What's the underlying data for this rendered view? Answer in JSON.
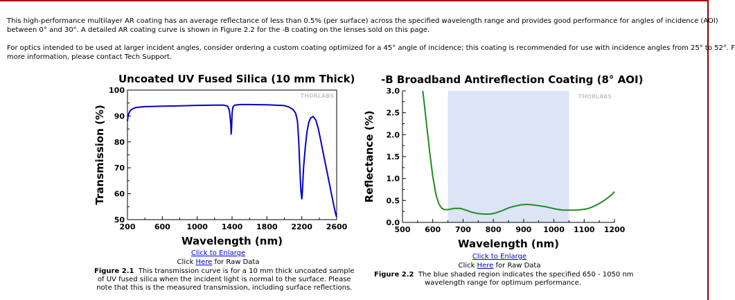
{
  "intro": {
    "p1_line1": "This high-performance multilayer AR coating has an average reflectance of less than 0.5% (per surface) across the specified wavelength range and provides good performance for angles of incidence (AOI)",
    "p1_line2": "between 0° and 30°. A detailed AR coating curve is shown in Figure 2.2 for the -B coating on the lenses sold on this page.",
    "p2_line1": "For optics intended to be used at larger incident angles, consider ordering a custom coating optimized for a 45° angle of incidence; this coating is recommended for use with incidence angles from 25° to 52°. F",
    "p2_line2": "more information, please contact Tech Support."
  },
  "watermark": "THORLABS",
  "figure1": {
    "enlarge": "Click to Enlarge",
    "raw_pre": "Click ",
    "raw_link": "Here",
    "raw_post": " for Raw Data",
    "label": "Figure 2.1",
    "caption_l1": "This transmission curve is for a 10 mm thick uncoated sample",
    "caption_l2": "of UV fused silica when the incident light is normal to the surface. Please",
    "caption_l3": "note that this is the measured transmission, including surface reflections."
  },
  "figure2": {
    "enlarge": "Click to Enlarge",
    "raw_pre": "Click ",
    "raw_link": "Here",
    "raw_post": " for Raw Data",
    "label": "Figure 2.2",
    "caption_l1": "The blue shaded region indicates the specified 650 - 1050 nm",
    "caption_l2": "wavelength range for optimum performance."
  },
  "colors": {
    "curve1": "#0000c8",
    "curve2": "#1f8c1f",
    "shade": "#dce4f6",
    "rule": "#b00000"
  },
  "chart_data": [
    {
      "type": "line",
      "title": "Uncoated UV Fused Silica (10 mm Thick)",
      "xlabel": "Wavelength (nm)",
      "ylabel": "Transmission (%)",
      "xlim": [
        200,
        2600
      ],
      "ylim": [
        50,
        100
      ],
      "xticks": [
        200,
        600,
        1000,
        1400,
        1800,
        2200,
        2600
      ],
      "yticks": [
        50,
        60,
        70,
        80,
        90,
        100
      ],
      "series": [
        {
          "x": [
            200,
            205,
            215,
            230,
            260,
            300,
            400,
            500,
            600,
            800,
            1000,
            1200,
            1300,
            1350,
            1370,
            1385,
            1390,
            1395,
            1400,
            1410,
            1430,
            1500,
            1600,
            1800,
            2000,
            2050,
            2100,
            2130,
            2150,
            2165,
            2180,
            2190,
            2200,
            2205,
            2210,
            2220,
            2240,
            2260,
            2280,
            2300,
            2330,
            2360,
            2390,
            2420,
            2450,
            2480,
            2510,
            2540,
            2570,
            2590,
            2600
          ],
          "y": [
            88,
            89.5,
            91,
            92,
            92.8,
            93.3,
            93.6,
            93.7,
            93.8,
            93.9,
            94.1,
            94.2,
            94.2,
            93.8,
            92,
            87,
            83,
            86,
            91,
            93.5,
            94.2,
            94.4,
            94.4,
            94.3,
            94,
            93.5,
            92.5,
            91,
            88,
            80,
            68,
            61,
            58,
            60,
            63,
            70,
            78,
            84,
            87.5,
            89.2,
            89.8,
            88.5,
            85,
            80,
            75,
            70,
            65,
            60,
            55,
            52,
            51
          ]
        }
      ]
    },
    {
      "type": "line",
      "title": "-B Broadband Antireflection Coating (8° AOI)",
      "xlabel": "Wavelength (nm)",
      "ylabel": "Reflectance (%)",
      "xlim": [
        500,
        1200
      ],
      "ylim": [
        0,
        3.0
      ],
      "xticks": [
        500,
        600,
        700,
        800,
        900,
        1000,
        1100,
        1200
      ],
      "yticks": [
        "0.0",
        "0.5",
        "1.0",
        "1.5",
        "2.0",
        "2.5",
        "3.0"
      ],
      "shaded_range": [
        650,
        1050
      ],
      "series": [
        {
          "x": [
            567,
            572,
            580,
            590,
            600,
            610,
            620,
            630,
            640,
            650,
            670,
            690,
            710,
            730,
            750,
            770,
            790,
            810,
            830,
            850,
            870,
            890,
            910,
            930,
            950,
            970,
            990,
            1010,
            1030,
            1050,
            1070,
            1090,
            1110,
            1130,
            1150,
            1170,
            1190,
            1200
          ],
          "y": [
            3.0,
            2.7,
            2.2,
            1.6,
            1.05,
            0.65,
            0.42,
            0.32,
            0.29,
            0.29,
            0.32,
            0.32,
            0.28,
            0.23,
            0.2,
            0.19,
            0.19,
            0.22,
            0.27,
            0.33,
            0.37,
            0.4,
            0.41,
            0.4,
            0.38,
            0.36,
            0.33,
            0.3,
            0.28,
            0.28,
            0.28,
            0.29,
            0.31,
            0.36,
            0.43,
            0.52,
            0.62,
            0.7
          ]
        }
      ]
    }
  ]
}
